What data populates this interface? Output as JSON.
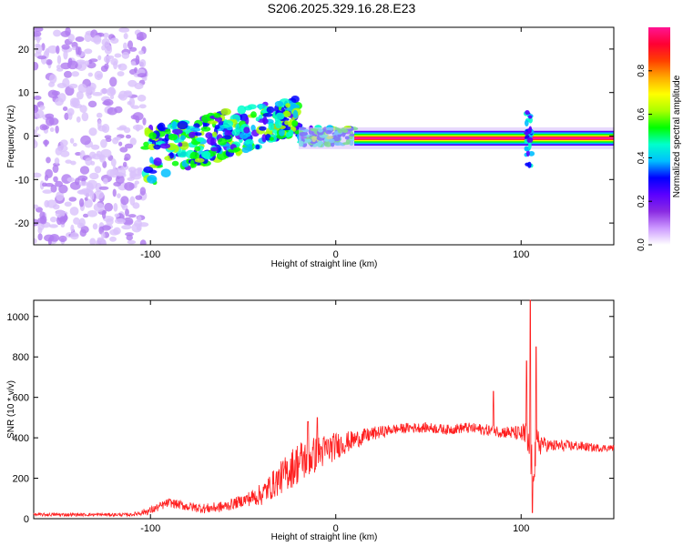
{
  "title": "S206.2025.329.16.28.E23",
  "chart_data": [
    {
      "type": "heatmap",
      "name": "spectrogram",
      "xlabel": "Height of straight line (km)",
      "ylabel": "Frequency (Hz)",
      "xlim": [
        -163,
        150
      ],
      "ylim": [
        -25,
        25
      ],
      "xticks": [
        -100,
        0,
        100
      ],
      "yticks": [
        -20,
        -10,
        0,
        10,
        20
      ],
      "colorbar": {
        "label": "Normalized spectral amplitude",
        "range": [
          0,
          1
        ],
        "ticks": [
          "0.0",
          "0.2",
          "0.4",
          "0.6",
          "0.8"
        ],
        "tick_values": [
          0,
          0.2,
          0.4,
          0.6,
          0.8
        ],
        "colors": [
          "#ffffff",
          "#cc99ff",
          "#8a2be2",
          "#5a00ff",
          "#0000ff",
          "#00bfff",
          "#00ffcc",
          "#00ff00",
          "#aaff00",
          "#ffff00",
          "#ffaa00",
          "#ff4000",
          "#ff0033",
          "#ff1493"
        ]
      },
      "regions": [
        {
          "name": "noise",
          "x_range": [
            -163,
            -103
          ],
          "freq_range": [
            -25,
            25
          ],
          "amplitude": 0.05
        },
        {
          "name": "scattered-signal",
          "x_range": [
            -103,
            -20
          ],
          "freq_center_start": -5,
          "freq_center_end": 5,
          "spread_hz": 6,
          "amplitude": 0.2
        },
        {
          "name": "converging-signal",
          "x_range": [
            -20,
            10
          ],
          "freq_center": 0,
          "spread_hz": 2,
          "amplitude": 0.35
        },
        {
          "name": "strong-carrier",
          "x_range": [
            10,
            150
          ],
          "freq_center": -0.5,
          "amplitude": 1.0
        },
        {
          "name": "disturbance",
          "x_center": 104,
          "freq_range": [
            -8,
            6
          ],
          "amplitude": 0.3
        }
      ]
    },
    {
      "type": "line",
      "name": "snr",
      "xlabel": "Height of straight line (km)",
      "ylabel": "SNR (10 * v/v)",
      "xlim": [
        -163,
        150
      ],
      "ylim": [
        0,
        1080
      ],
      "xticks": [
        -100,
        0,
        100
      ],
      "yticks": [
        0,
        200,
        400,
        600,
        800,
        1000
      ],
      "color": "#ff2020",
      "envelope": {
        "x": [
          -163,
          -110,
          -100,
          -90,
          -80,
          -70,
          -60,
          -50,
          -40,
          -30,
          -20,
          -10,
          0,
          10,
          20,
          30,
          40,
          50,
          60,
          70,
          80,
          90,
          100,
          103,
          106,
          110,
          115,
          120,
          130,
          140,
          150
        ],
        "y": [
          20,
          20,
          40,
          80,
          60,
          50,
          60,
          90,
          120,
          200,
          280,
          320,
          360,
          390,
          420,
          440,
          450,
          450,
          440,
          450,
          440,
          430,
          420,
          400,
          260,
          380,
          360,
          360,
          360,
          350,
          350
        ]
      },
      "noise_amplitude": {
        "x": [
          -163,
          -110,
          -100,
          -70,
          -50,
          -30,
          -20,
          -5,
          10,
          30,
          60,
          90,
          100,
          103,
          108,
          112,
          150
        ],
        "y": [
          8,
          8,
          20,
          25,
          30,
          80,
          110,
          80,
          45,
          25,
          25,
          30,
          40,
          100,
          120,
          35,
          15
        ]
      },
      "spikes": [
        {
          "x": -10,
          "y": 500
        },
        {
          "x": -15,
          "y": 480
        },
        {
          "x": 85,
          "y": 630
        },
        {
          "x": 103,
          "y": 780
        },
        {
          "x": 105,
          "y": 1080
        },
        {
          "x": 108,
          "y": 850
        },
        {
          "x": 106,
          "y": 30
        }
      ]
    }
  ]
}
